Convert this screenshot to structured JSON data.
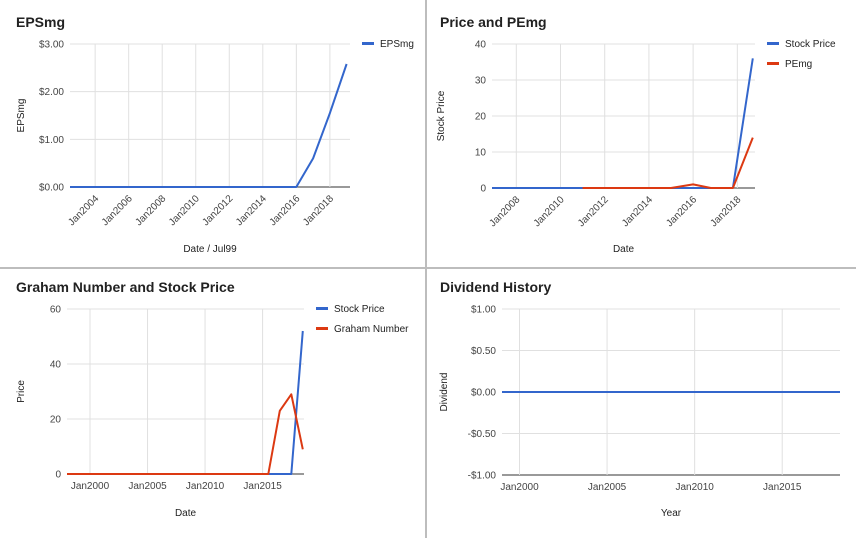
{
  "colors": {
    "blue": "#3366cc",
    "red": "#dc3912",
    "grid": "#e0e0e0",
    "axis": "#333333"
  },
  "chart_data": [
    {
      "id": "eps",
      "type": "line",
      "title": "EPSmg",
      "xlabel": "Date / Jul99",
      "ylabel": "EPSmg",
      "x_ticks": [
        "Jan2004",
        "Jan2006",
        "Jan2008",
        "Jan2010",
        "Jan2012",
        "Jan2014",
        "Jan2016",
        "Jan2018"
      ],
      "x_tick_years": [
        2004,
        2006,
        2008,
        2010,
        2012,
        2014,
        2016,
        2018
      ],
      "y_ticks": [
        "$0.00",
        "$1.00",
        "$2.00",
        "$3.00"
      ],
      "y_tick_values": [
        0,
        1,
        2,
        3
      ],
      "ylim": [
        0,
        3
      ],
      "xlim": [
        2002.5,
        2019.2
      ],
      "rotate_x": true,
      "legend_position": "top-right",
      "series": [
        {
          "name": "EPSmg",
          "color": "#3366cc",
          "points": [
            [
              2002.5,
              0
            ],
            [
              2016.0,
              0
            ],
            [
              2017.0,
              0.6
            ],
            [
              2018.0,
              1.55
            ],
            [
              2019.0,
              2.58
            ]
          ]
        }
      ]
    },
    {
      "id": "price-pe",
      "type": "line",
      "title": "Price and PEmg",
      "xlabel": "Date",
      "ylabel": "Stock Price",
      "x_ticks": [
        "Jan2008",
        "Jan2010",
        "Jan2012",
        "Jan2014",
        "Jan2016",
        "Jan2018"
      ],
      "x_tick_years": [
        2008,
        2010,
        2012,
        2014,
        2016,
        2018
      ],
      "y_ticks": [
        "0",
        "10",
        "20",
        "30",
        "40"
      ],
      "y_tick_values": [
        0,
        10,
        20,
        30,
        40
      ],
      "ylim": [
        0,
        40
      ],
      "xlim": [
        2006.9,
        2018.8
      ],
      "rotate_x": true,
      "legend_position": "top-right",
      "series": [
        {
          "name": "Stock Price",
          "color": "#3366cc",
          "points": [
            [
              2006.9,
              0
            ],
            [
              2017.8,
              0
            ],
            [
              2018.7,
              36
            ]
          ]
        },
        {
          "name": "PEmg",
          "color": "#dc3912",
          "points": [
            [
              2011.0,
              0
            ],
            [
              2015.0,
              0
            ],
            [
              2016.0,
              1
            ],
            [
              2016.8,
              0
            ],
            [
              2017.8,
              0
            ],
            [
              2018.7,
              14
            ]
          ]
        }
      ]
    },
    {
      "id": "graham",
      "type": "line",
      "title": "Graham Number and Stock Price",
      "xlabel": "Date",
      "ylabel": "Price",
      "x_ticks": [
        "Jan2000",
        "Jan2005",
        "Jan2010",
        "Jan2015"
      ],
      "x_tick_years": [
        2000,
        2005,
        2010,
        2015
      ],
      "y_ticks": [
        "0",
        "20",
        "40",
        "60"
      ],
      "y_tick_values": [
        0,
        20,
        40,
        60
      ],
      "ylim": [
        0,
        60
      ],
      "xlim": [
        1998.0,
        2018.6
      ],
      "rotate_x": false,
      "legend_position": "top-right",
      "series": [
        {
          "name": "Stock Price",
          "color": "#3366cc",
          "points": [
            [
              1998.0,
              0
            ],
            [
              2017.5,
              0
            ],
            [
              2018.5,
              52
            ]
          ]
        },
        {
          "name": "Graham Number",
          "color": "#dc3912",
          "points": [
            [
              1998.0,
              0
            ],
            [
              2015.5,
              0
            ],
            [
              2016.5,
              23
            ],
            [
              2017.5,
              29
            ],
            [
              2018.5,
              9
            ]
          ]
        }
      ]
    },
    {
      "id": "dividend",
      "type": "line",
      "title": "Dividend History",
      "xlabel": "Year",
      "ylabel": "Dividend",
      "x_ticks": [
        "Jan2000",
        "Jan2005",
        "Jan2010",
        "Jan2015"
      ],
      "x_tick_years": [
        2000,
        2005,
        2010,
        2015
      ],
      "y_ticks": [
        "-$1.00",
        "-$0.50",
        "$0.00",
        "$0.50",
        "$1.00"
      ],
      "y_tick_values": [
        -1,
        -0.5,
        0,
        0.5,
        1
      ],
      "ylim": [
        -1,
        1
      ],
      "xlim": [
        1999.0,
        2018.3
      ],
      "rotate_x": false,
      "legend_position": "none",
      "series": [
        {
          "color": "#3366cc",
          "points": [
            [
              1999.0,
              0
            ],
            [
              2018.3,
              0
            ]
          ]
        }
      ]
    }
  ]
}
